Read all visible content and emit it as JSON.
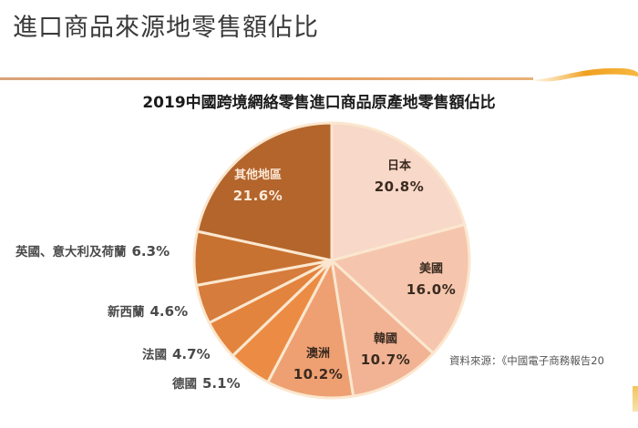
{
  "page": {
    "title": "進口商品來源地零售額佔比"
  },
  "chart_data": {
    "type": "pie",
    "title": "2019中國跨境網絡零售進口商品原產地零售額佔比",
    "start_angle": "12 o'clock",
    "direction": "clockwise",
    "slices": [
      {
        "label": "日本",
        "value": 20.8,
        "value_label": "20.8%",
        "color": "#f8d8c8",
        "label_position": "inside",
        "text_color": "#3a2a20"
      },
      {
        "label": "美國",
        "value": 16.0,
        "value_label": "16.0%",
        "color": "#f5c6ad",
        "label_position": "inside",
        "text_color": "#3a2a20"
      },
      {
        "label": "韓國",
        "value": 10.7,
        "value_label": "10.7%",
        "color": "#f1b394",
        "label_position": "inside",
        "text_color": "#3a2a20"
      },
      {
        "label": "澳洲",
        "value": 10.2,
        "value_label": "10.2%",
        "color": "#eea072",
        "label_position": "inside",
        "text_color": "#3a2a20"
      },
      {
        "label": "德國",
        "value": 5.1,
        "value_label": "5.1%",
        "color": "#ec8c44",
        "label_position": "outside",
        "text_color": "#4a4a4a"
      },
      {
        "label": "法國",
        "value": 4.7,
        "value_label": "4.7%",
        "color": "#e3843e",
        "label_position": "outside",
        "text_color": "#4a4a4a"
      },
      {
        "label": "新西蘭",
        "value": 4.6,
        "value_label": "4.6%",
        "color": "#d67c3c",
        "label_position": "outside",
        "text_color": "#4a4a4a"
      },
      {
        "label": "英國、意大利及荷蘭",
        "value": 6.3,
        "value_label": "6.3%",
        "color": "#c87232",
        "label_position": "outside",
        "text_color": "#4a4a4a"
      },
      {
        "label": "其他地區",
        "value": 21.6,
        "value_label": "21.6%",
        "color": "#b3652c",
        "label_position": "inside",
        "text_color": "#fbe9d8"
      }
    ],
    "separator_color": "#fbe7cf"
  },
  "source": {
    "text": "資料來源：《中國電子商務報告20"
  }
}
